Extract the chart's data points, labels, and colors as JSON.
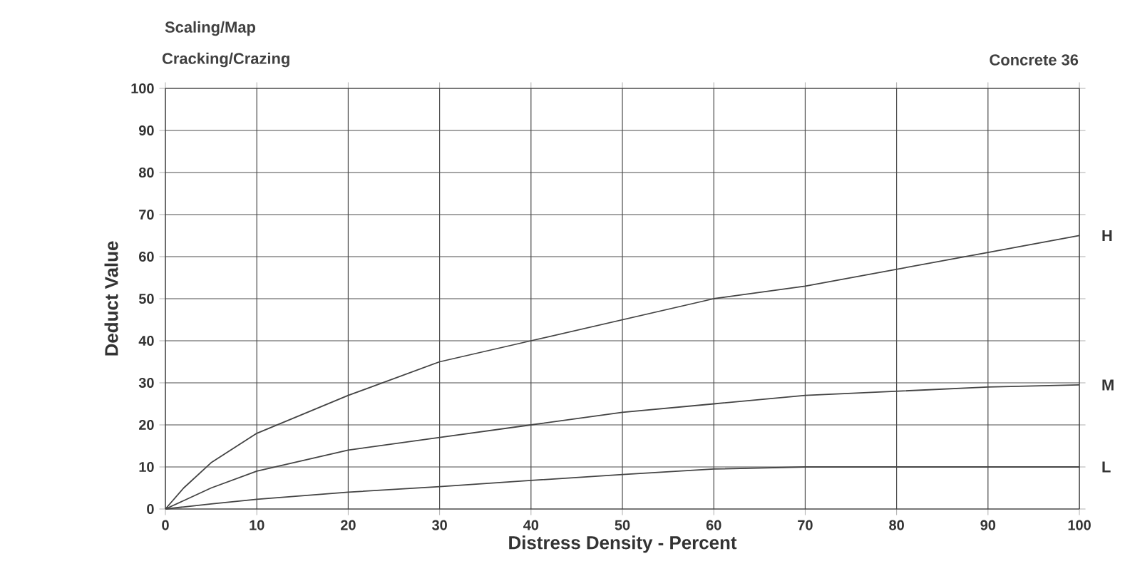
{
  "chart_data": {
    "type": "line",
    "title": "Scaling/Map",
    "subtitle": "Cracking/Crazing",
    "annotations": [
      "Concrete 36"
    ],
    "xlabel": "Distress Density - Percent",
    "ylabel": "Deduct Value",
    "x": [
      0,
      2,
      5,
      10,
      20,
      30,
      40,
      50,
      60,
      70,
      80,
      90,
      100
    ],
    "series": [
      {
        "name": "H",
        "color": "#444444",
        "values": [
          0,
          5,
          11,
          18,
          27,
          35,
          40,
          45,
          50,
          53,
          57,
          61,
          65
        ]
      },
      {
        "name": "M",
        "color": "#444444",
        "values": [
          0,
          2,
          5,
          9,
          14,
          17,
          20,
          23,
          25,
          27,
          28,
          29,
          29.5
        ]
      },
      {
        "name": "L",
        "color": "#444444",
        "values": [
          0,
          0.5,
          1.2,
          2.3,
          4,
          5.3,
          6.8,
          8.2,
          9.5,
          10,
          10,
          10,
          10
        ]
      }
    ],
    "xlim": [
      0,
      100
    ],
    "ylim": [
      0,
      100
    ],
    "xticks": [
      0,
      10,
      20,
      30,
      40,
      50,
      60,
      70,
      80,
      90,
      100
    ],
    "yticks": [
      0,
      10,
      20,
      30,
      40,
      50,
      60,
      70,
      80,
      90,
      100
    ],
    "grid": true,
    "marker": "none",
    "line_style": "solid"
  }
}
